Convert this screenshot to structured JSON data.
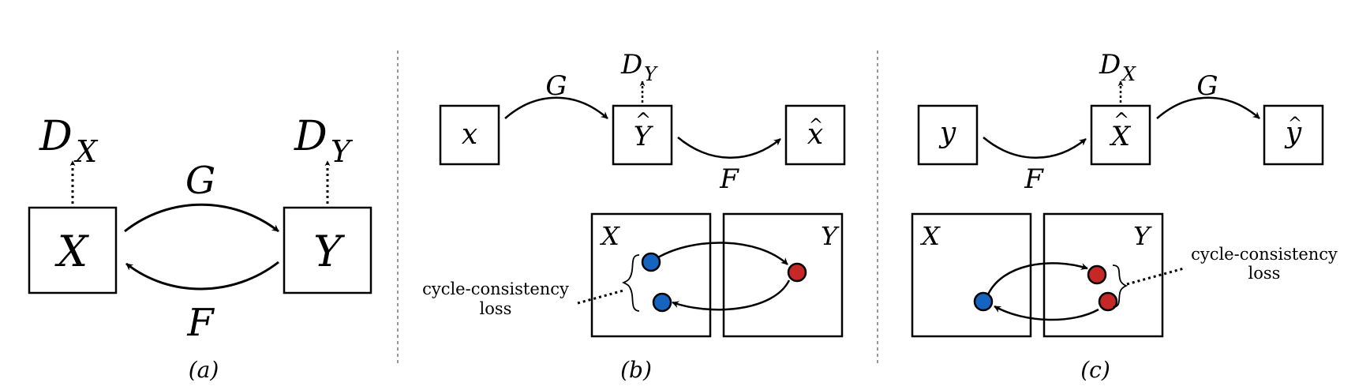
{
  "panel_a": {
    "node_left": "X",
    "node_right": "Y",
    "disc_left_base": "D",
    "disc_left_sub": "X",
    "disc_right_base": "D",
    "disc_right_sub": "Y",
    "arrow_forward": "G",
    "arrow_backward": "F",
    "caption": "(a)"
  },
  "panel_b": {
    "input": "x",
    "middle": "Y",
    "output": "x",
    "disc_base": "D",
    "disc_sub": "Y",
    "arrow_first": "G",
    "arrow_second": "F",
    "domain_left": "X",
    "domain_right": "Y",
    "loss_label_line1": "cycle-consistency",
    "loss_label_line2": "loss",
    "caption": "(b)"
  },
  "panel_c": {
    "input": "y",
    "middle": "X",
    "output": "y",
    "disc_base": "D",
    "disc_sub": "X",
    "arrow_first": "F",
    "arrow_second": "G",
    "domain_left": "X",
    "domain_right": "Y",
    "loss_label_line1": "cycle-consistency",
    "loss_label_line2": "loss",
    "caption": "(c)"
  },
  "colors": {
    "blue_dot": "#1565c0",
    "red_dot": "#c62828",
    "stroke": "#000000",
    "divider": "#777777"
  }
}
